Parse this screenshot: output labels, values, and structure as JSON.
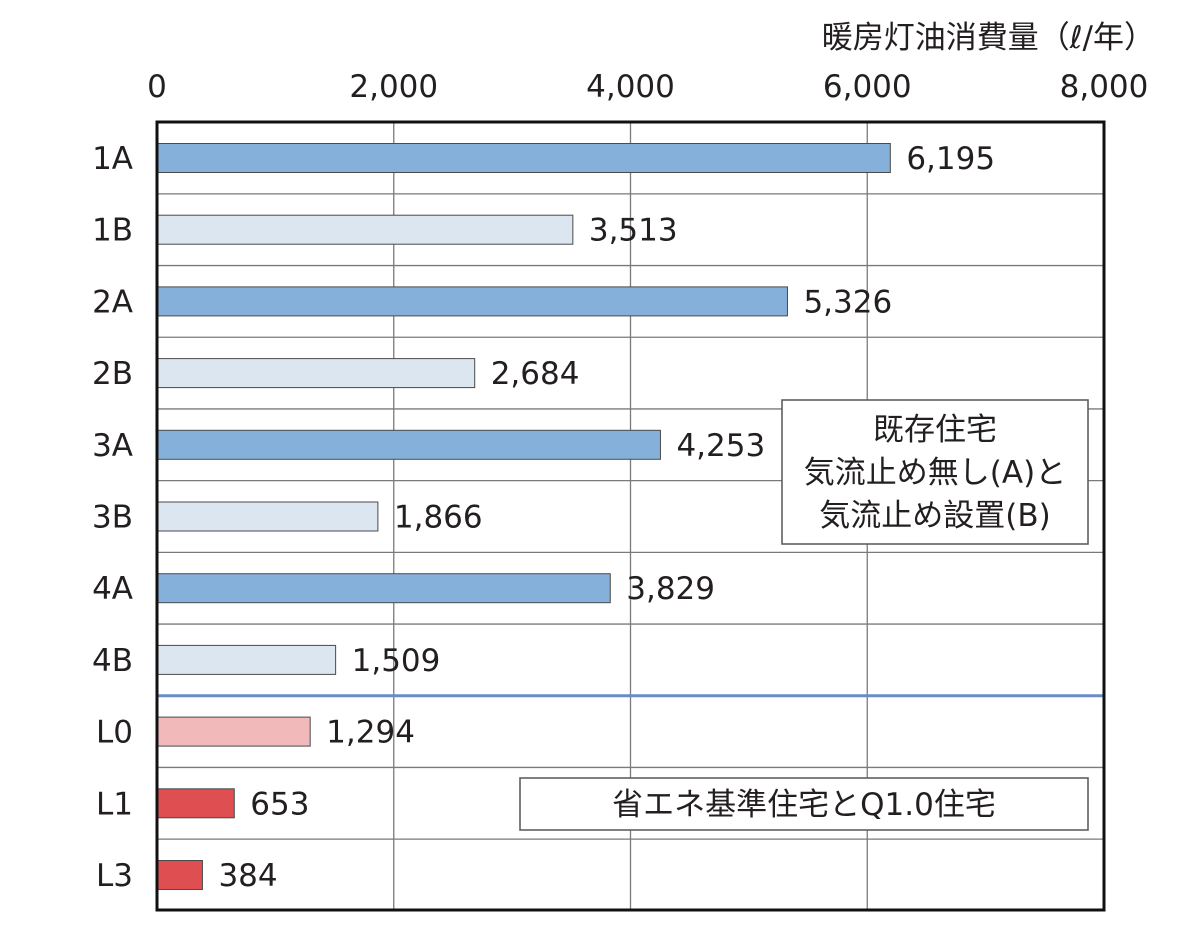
{
  "chart_data": {
    "type": "bar",
    "orientation": "horizontal",
    "axis_title": "暖房灯油消費量（ℓ/年）",
    "xlim": [
      0,
      8000
    ],
    "x_ticks": [
      0,
      2000,
      4000,
      6000,
      8000
    ],
    "x_tick_labels": [
      "0",
      "2,000",
      "4,000",
      "6,000",
      "8,000"
    ],
    "grid": true,
    "categories": [
      "1A",
      "1B",
      "2A",
      "2B",
      "3A",
      "3B",
      "4A",
      "4B",
      "L0",
      "L1",
      "L3"
    ],
    "values": [
      6195,
      3513,
      5326,
      2684,
      4253,
      1866,
      3829,
      1509,
      1294,
      653,
      384
    ],
    "value_labels": [
      "6,195",
      "3,513",
      "5,326",
      "2,684",
      "4,253",
      "1,866",
      "3,829",
      "1,509",
      "1,294",
      "653",
      "384"
    ],
    "bar_colors": [
      "#85b0d9",
      "#dbe6f1",
      "#85b0d9",
      "#dbe6f1",
      "#85b0d9",
      "#dbe6f1",
      "#85b0d9",
      "#dbe6f1",
      "#f2b9bb",
      "#df4e50",
      "#df4e50"
    ],
    "separator_after_index": 7,
    "separator_color": "#6a8cc8",
    "annotations": [
      {
        "lines": [
          "既存住宅",
          "気流止め無し(A)と",
          "気流止め設置(B)"
        ]
      },
      {
        "lines": [
          "省エネ基準住宅とQ1.0住宅"
        ]
      }
    ]
  }
}
